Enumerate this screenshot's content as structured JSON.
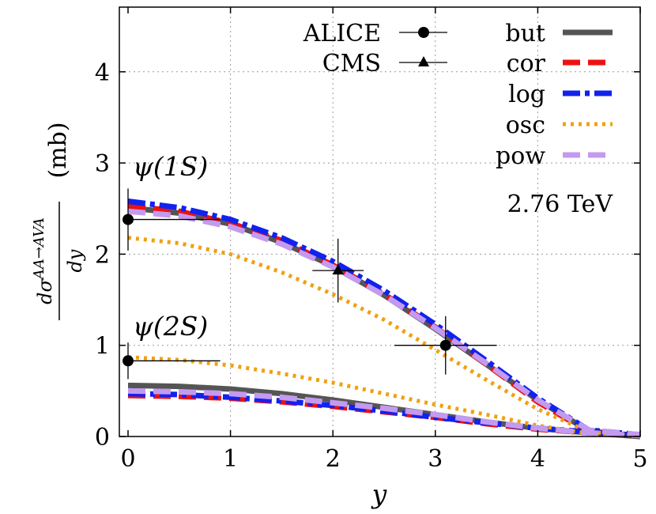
{
  "chart_data": {
    "type": "line",
    "xlabel": "y",
    "ylabel": {
      "numerator": "dσ",
      "superscript": "AA→AVA",
      "denominator": "dy",
      "unit": "(mb)"
    },
    "xlim": [
      0,
      5
    ],
    "ylim": [
      0,
      4.7
    ],
    "x_ticks": [
      0,
      1,
      2,
      3,
      4,
      5
    ],
    "y_ticks": [
      0,
      1,
      2,
      3,
      4
    ],
    "grid": true,
    "legend_position": "top-right",
    "annotations": {
      "psi1s": "ψ(1S)",
      "psi2s": "ψ(2S)",
      "energy": "2.76 TeV"
    },
    "series": [
      {
        "name": "but",
        "color": "#555555",
        "style": "solid",
        "curves": [
          {
            "state": "1S",
            "x": [
              0,
              0.5,
              1.0,
              1.5,
              2.0,
              2.5,
              3.0,
              3.5,
              4.0,
              4.5,
              5.0
            ],
            "y": [
              2.51,
              2.45,
              2.33,
              2.13,
              1.87,
              1.55,
              1.18,
              0.79,
              0.4,
              0.06,
              0.0
            ]
          },
          {
            "state": "2S",
            "x": [
              0,
              0.5,
              1.0,
              1.5,
              2.0,
              2.5,
              3.0,
              3.5,
              4.0,
              4.5,
              5.0
            ],
            "y": [
              0.56,
              0.55,
              0.52,
              0.47,
              0.4,
              0.32,
              0.24,
              0.16,
              0.09,
              0.04,
              0.0
            ]
          }
        ]
      },
      {
        "name": "cor",
        "color": "#ee1111",
        "style": "dashed",
        "curves": [
          {
            "state": "1S",
            "x": [
              0,
              0.5,
              1.0,
              1.5,
              2.0,
              2.5,
              3.0,
              3.5,
              4.0,
              4.5,
              5.0
            ],
            "y": [
              2.53,
              2.47,
              2.34,
              2.15,
              1.88,
              1.56,
              1.2,
              0.79,
              0.38,
              0.05,
              0.01
            ]
          },
          {
            "state": "2S",
            "x": [
              0,
              0.5,
              1.0,
              1.5,
              2.0,
              2.5,
              3.0,
              3.5,
              4.0,
              4.5,
              5.0
            ],
            "y": [
              0.45,
              0.44,
              0.42,
              0.38,
              0.33,
              0.27,
              0.21,
              0.14,
              0.08,
              0.04,
              0.01
            ]
          }
        ]
      },
      {
        "name": "log",
        "color": "#1122ee",
        "style": "dash-dot",
        "curves": [
          {
            "state": "1S",
            "x": [
              0,
              0.5,
              1.0,
              1.5,
              2.0,
              2.5,
              3.0,
              3.5,
              4.0,
              4.5,
              5.0
            ],
            "y": [
              2.58,
              2.51,
              2.38,
              2.18,
              1.92,
              1.6,
              1.23,
              0.83,
              0.42,
              0.07,
              0.02
            ]
          },
          {
            "state": "2S",
            "x": [
              0,
              0.5,
              1.0,
              1.5,
              2.0,
              2.5,
              3.0,
              3.5,
              4.0,
              4.5,
              5.0
            ],
            "y": [
              0.47,
              0.46,
              0.43,
              0.39,
              0.34,
              0.28,
              0.21,
              0.15,
              0.09,
              0.05,
              0.01
            ]
          }
        ]
      },
      {
        "name": "osc",
        "color": "#f0a010",
        "style": "dotted",
        "curves": [
          {
            "state": "1S",
            "x": [
              0,
              0.5,
              1.0,
              1.5,
              2.0,
              2.5,
              3.0,
              3.5,
              4.0,
              4.5,
              5.0
            ],
            "y": [
              2.18,
              2.12,
              2.0,
              1.8,
              1.56,
              1.28,
              0.95,
              0.62,
              0.3,
              0.05,
              0.01
            ]
          },
          {
            "state": "2S",
            "x": [
              0,
              0.5,
              1.0,
              1.5,
              2.0,
              2.5,
              3.0,
              3.5,
              4.0,
              4.5,
              5.0
            ],
            "y": [
              0.87,
              0.84,
              0.78,
              0.69,
              0.59,
              0.47,
              0.35,
              0.24,
              0.12,
              0.03,
              0.01
            ]
          }
        ]
      },
      {
        "name": "pow",
        "color": "#c39af0",
        "style": "dashed",
        "curves": [
          {
            "state": "1S",
            "x": [
              0,
              0.5,
              1.0,
              1.5,
              2.0,
              2.5,
              3.0,
              3.5,
              4.0,
              4.5,
              5.0
            ],
            "y": [
              2.47,
              2.42,
              2.3,
              2.11,
              1.86,
              1.55,
              1.19,
              0.8,
              0.4,
              0.07,
              0.02
            ]
          },
          {
            "state": "2S",
            "x": [
              0,
              0.5,
              1.0,
              1.5,
              2.0,
              2.5,
              3.0,
              3.5,
              4.0,
              4.5,
              5.0
            ],
            "y": [
              0.5,
              0.49,
              0.47,
              0.43,
              0.37,
              0.31,
              0.24,
              0.16,
              0.09,
              0.04,
              0.01
            ]
          }
        ]
      }
    ],
    "data_points": [
      {
        "name": "ALICE",
        "marker": "circle",
        "points": [
          {
            "x": 0.0,
            "y": 2.38,
            "xerr": [
              0.0,
              0.9
            ],
            "yerr": 0.34
          },
          {
            "x": 0.0,
            "y": 0.83,
            "xerr": [
              0.0,
              0.9
            ],
            "yerr": 0.2
          },
          {
            "x": 3.1,
            "y": 1.0,
            "xerr": [
              0.5,
              0.5
            ],
            "yerr": 0.32
          }
        ]
      },
      {
        "name": "CMS",
        "marker": "triangle",
        "points": [
          {
            "x": 2.05,
            "y": 1.82,
            "xerr": [
              0.25,
              0.25
            ],
            "yerr": 0.35
          }
        ]
      }
    ]
  }
}
